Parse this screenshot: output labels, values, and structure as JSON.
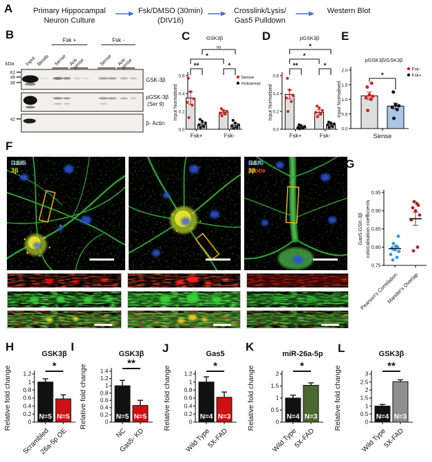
{
  "panels": {
    "A": "A",
    "B": "B",
    "C": "C",
    "D": "D",
    "E": "E",
    "F": "F",
    "G": "G",
    "H": "H",
    "I": "I",
    "J": "J",
    "K": "K",
    "L": "L"
  },
  "panelA": {
    "arrow_color": "#4472c4",
    "steps": [
      {
        "line1": "Primary Hippocampal",
        "line2": "Neuron Culture"
      },
      {
        "line1": "Fsk/DMSO (30min)",
        "line2": "(DIV16)"
      },
      {
        "line1": "Crosslink/Lysis/",
        "line2": "Gas5 Pulldown"
      },
      {
        "line1": "Western Blot",
        "line2": ""
      }
    ]
  },
  "panelB": {
    "kda_label": "kDa",
    "group_labels": [
      "Fsk +",
      "Fsk -"
    ],
    "lane_labels": [
      "Input",
      "Beads",
      "Sense",
      "Anti\nsense",
      "Sense",
      "Anti\nsense"
    ],
    "mw_labels": [
      "62",
      "49",
      "38",
      "42"
    ],
    "blot_labels": [
      "GSK-3β",
      "pGSK-3β",
      "(Ser 9)",
      "β- Actin"
    ]
  },
  "panelF": {
    "img1_labels": [
      {
        "text": "Gas5",
        "color": "#ff3b30"
      },
      {
        "text": "GSK-3β",
        "color": "#d7e838"
      },
      {
        "text": "DAPI",
        "color": "#4da3ff"
      }
    ],
    "img3_labels": [
      {
        "text": "No probe",
        "color": "#ff3b30"
      },
      {
        "text": "GSK-3β",
        "color": "#d7e838"
      },
      {
        "text": "DAPI",
        "color": "#4da3ff"
      }
    ]
  },
  "chart_data": [
    {
      "id": "C",
      "type": "bar",
      "title": "GSK3β",
      "ylabel": "Input Normalised",
      "ylim": [
        0,
        0.6
      ],
      "yticks": [
        {
          "v": 0,
          "label": "0.0"
        },
        {
          "v": 0.2,
          "label": "0.2"
        },
        {
          "v": 0.4,
          "label": "0.4"
        },
        {
          "v": 0.6,
          "label": "0.6"
        }
      ],
      "categories": [
        "Fsk+",
        "Fsk-"
      ],
      "series": [
        {
          "name": "Sense",
          "bar_color": "#dedede",
          "dot_color": "#d62020",
          "values": [
            0.35,
            0.19
          ],
          "errors": [
            0.07,
            0.02
          ],
          "dots": [
            [
              0.13,
              0.27,
              0.3,
              0.34,
              0.42,
              0.57
            ],
            [
              0.15,
              0.17,
              0.18,
              0.2,
              0.21,
              0.23
            ]
          ]
        },
        {
          "name": "Antisense",
          "bar_color": "#a9c6e4",
          "dot_color": "#111111",
          "values": [
            0.05,
            0.04
          ],
          "errors": [
            0.02,
            0.02
          ],
          "dots": [
            [
              0.02,
              0.03,
              0.05,
              0.07,
              0.09,
              0.11
            ],
            [
              0.01,
              0.02,
              0.04,
              0.05,
              0.07,
              0.1
            ]
          ]
        }
      ],
      "legend": [
        {
          "label": "Sense",
          "color": "#d62020"
        },
        {
          "label": "Antisense",
          "color": "#111111"
        }
      ],
      "significance": [
        {
          "label": "**",
          "between": "Fsk+ Sense vs Fsk+ Antisense"
        },
        {
          "label": "*",
          "between": "Fsk+ Sense vs Fsk- Sense"
        },
        {
          "label": "*",
          "between": "Fsk- Sense vs Fsk- Antisense"
        },
        {
          "label": "ns",
          "between": "Fsk+ Antisense vs Fsk- Antisense"
        }
      ]
    },
    {
      "id": "D",
      "type": "bar",
      "title": "pGSK3β",
      "ylabel": "Input Normalised",
      "ylim": [
        0,
        0.6
      ],
      "yticks": [
        {
          "v": 0,
          "label": "0.0"
        },
        {
          "v": 0.2,
          "label": "0.2"
        },
        {
          "v": 0.4,
          "label": "0.4"
        },
        {
          "v": 0.6,
          "label": "0.6"
        }
      ],
      "categories": [
        "Fsk+",
        "Fsk-"
      ],
      "series": [
        {
          "name": "Sense",
          "bar_color": "#dedede",
          "dot_color": "#d62020",
          "values": [
            0.39,
            0.19
          ],
          "errors": [
            0.05,
            0.03
          ],
          "dots": [
            [
              0.2,
              0.31,
              0.35,
              0.38,
              0.44,
              0.57
            ],
            [
              0.14,
              0.17,
              0.19,
              0.21,
              0.24,
              0.26
            ]
          ]
        },
        {
          "name": "Antisense",
          "bar_color": "#a9c6e4",
          "dot_color": "#111111",
          "values": [
            0.02,
            0.05
          ],
          "errors": [
            0.01,
            0.015
          ],
          "dots": [
            [
              0.005,
              0.01,
              0.02,
              0.03,
              0.04,
              0.05
            ],
            [
              0.02,
              0.03,
              0.05,
              0.06,
              0.07,
              0.08
            ]
          ]
        }
      ],
      "significance": [
        {
          "label": "**",
          "between": "Fsk+ Sense vs Fsk+ Antisense"
        },
        {
          "label": "*",
          "between": "Fsk+ Sense vs Fsk- Sense"
        },
        {
          "label": "*",
          "between": "Fsk- Sense vs Fsk- Antisense"
        },
        {
          "label": "*",
          "between": "Fsk+ Sense vs Fsk- Antisense"
        }
      ]
    },
    {
      "id": "E",
      "type": "bar",
      "title": "pGSK3β/GSK3β",
      "ylabel": "Input Normalised",
      "ylim": [
        0,
        2
      ],
      "yticks": [
        {
          "v": 0,
          "label": "0.0"
        },
        {
          "v": 0.5,
          "label": "0.5"
        },
        {
          "v": 1,
          "label": "1.0"
        },
        {
          "v": 1.5,
          "label": "1.5"
        },
        {
          "v": 2,
          "label": "2.0"
        }
      ],
      "categories": [
        "Sense"
      ],
      "series": [
        {
          "name": "Fsk-",
          "bar_color": "#dedede",
          "dot_color": "#d62020",
          "values": [
            1.12
          ],
          "errors": [
            0.13
          ],
          "dots": [
            [
              0.62,
              1.0,
              1.05,
              1.1,
              1.16,
              1.42,
              1.55
            ]
          ]
        },
        {
          "name": "Fsk+",
          "bar_color": "#a9c6e4",
          "dot_color": "#111111",
          "values": [
            0.77
          ],
          "errors": [
            0.1
          ],
          "dots": [
            [
              0.35,
              0.65,
              0.73,
              0.78,
              0.81,
              1.25
            ]
          ]
        }
      ],
      "legend": [
        {
          "label": "Fsk-",
          "color": "#d62020"
        },
        {
          "label": "Fsk+",
          "color": "#111111"
        }
      ],
      "significance": [
        {
          "label": "*",
          "between": "Fsk- vs Fsk+"
        }
      ]
    },
    {
      "id": "G",
      "type": "scatter",
      "ylabel_lines": [
        "Gas5-GSK-3β",
        "colocalisation coefficients"
      ],
      "ylim": [
        0.75,
        0.95
      ],
      "yticks": [
        {
          "v": 0.75,
          "label": "0.75"
        },
        {
          "v": 0.8,
          "label": "0.80"
        },
        {
          "v": 0.85,
          "label": "0.85"
        },
        {
          "v": 0.9,
          "label": "0.90"
        },
        {
          "v": 0.95,
          "label": "0.95"
        }
      ],
      "categories": [
        "Pearson's Correlation",
        "Mander's Overlap"
      ],
      "series": [
        {
          "name": "Pearson's Correlation",
          "dot_color": "#2e96f5",
          "mean": 0.796,
          "sem": 0.006,
          "dots": [
            0.765,
            0.772,
            0.78,
            0.788,
            0.793,
            0.797,
            0.8,
            0.803,
            0.81,
            0.83
          ]
        },
        {
          "name": "Mander's Overlap",
          "dot_color": "#b22020",
          "mean": 0.878,
          "sem": 0.018,
          "dots": [
            0.79,
            0.8,
            0.875,
            0.888,
            0.9,
            0.908,
            0.915,
            0.92,
            0.925
          ]
        }
      ]
    },
    {
      "id": "H",
      "type": "bar",
      "title": "GSK3β",
      "ylabel": "Relative fold change",
      "ylim": [
        0,
        1.2
      ],
      "yticks": [
        {
          "v": 0,
          "label": "0"
        },
        {
          "v": 0.2,
          "label": "0.2"
        },
        {
          "v": 0.4,
          "label": "0.4"
        },
        {
          "v": 0.6,
          "label": "0.6"
        },
        {
          "v": 0.8,
          "label": "0.8"
        },
        {
          "v": 1,
          "label": "1"
        },
        {
          "v": 1.2,
          "label": "1.2"
        }
      ],
      "categories": [
        "Scrambled",
        "26a-5p OE"
      ],
      "values": [
        1.0,
        0.58
      ],
      "errors": [
        0.08,
        0.1
      ],
      "bar_colors": [
        "#111111",
        "#cc1111"
      ],
      "n_labels": [
        "N=5",
        "N=5"
      ],
      "significance": [
        {
          "label": "*",
          "between": "Scrambled vs 26a-5p OE"
        }
      ]
    },
    {
      "id": "I",
      "type": "bar",
      "title": "GSK3β",
      "ylabel": "Relative fold change",
      "ylim": [
        0,
        1.4
      ],
      "yticks": [
        {
          "v": 0,
          "label": "0"
        },
        {
          "v": 0.2,
          "label": "0.2"
        },
        {
          "v": 0.4,
          "label": "0.4"
        },
        {
          "v": 0.6,
          "label": "0.6"
        },
        {
          "v": 0.8,
          "label": "0.8"
        },
        {
          "v": 1,
          "label": "1"
        },
        {
          "v": 1.2,
          "label": "1.2"
        },
        {
          "v": 1.4,
          "label": "1.4"
        }
      ],
      "categories": [
        "NC",
        "Gas5- KD"
      ],
      "values": [
        1.0,
        0.46
      ],
      "errors": [
        0.15,
        0.14
      ],
      "bar_colors": [
        "#111111",
        "#cc1111"
      ],
      "n_labels": [
        "N=5",
        "N=5"
      ],
      "significance": [
        {
          "label": "**",
          "between": "NC vs Gas5- KD"
        }
      ]
    },
    {
      "id": "J",
      "type": "bar",
      "title": "Gas5",
      "ylabel": "Relative fold change",
      "ylim": [
        0,
        1.2
      ],
      "yticks": [
        {
          "v": 0,
          "label": "0"
        },
        {
          "v": 0.2,
          "label": "0.2"
        },
        {
          "v": 0.4,
          "label": "0.4"
        },
        {
          "v": 0.6,
          "label": "0.6"
        },
        {
          "v": 0.8,
          "label": "0.8"
        },
        {
          "v": 1,
          "label": "1"
        },
        {
          "v": 1.2,
          "label": "1.2"
        }
      ],
      "categories": [
        "Wild Type",
        "5X-FAD"
      ],
      "values": [
        1.0,
        0.62
      ],
      "errors": [
        0.13,
        0.13
      ],
      "bar_colors": [
        "#111111",
        "#cc1111"
      ],
      "n_labels": [
        "N=4",
        "N=3"
      ],
      "significance": [
        {
          "label": "*",
          "between": "Wild Type vs 5X-FAD"
        }
      ]
    },
    {
      "id": "K",
      "type": "bar",
      "title": "miR-26a-5p",
      "ylabel": "Relative fold change",
      "ylim": [
        0,
        2
      ],
      "yticks": [
        {
          "v": 0,
          "label": "0"
        },
        {
          "v": 0.5,
          "label": "0.5"
        },
        {
          "v": 1,
          "label": "1"
        },
        {
          "v": 1.5,
          "label": "1.5"
        },
        {
          "v": 2,
          "label": "2"
        }
      ],
      "categories": [
        "Wild Type",
        "5X-FAD"
      ],
      "values": [
        1.0,
        1.53
      ],
      "errors": [
        0.12,
        0.1
      ],
      "bar_colors": [
        "#111111",
        "#4a682f"
      ],
      "n_labels": [
        "N=4",
        "N=3"
      ],
      "significance": [
        {
          "label": "*",
          "between": "Wild Type vs 5X-FAD"
        }
      ]
    },
    {
      "id": "L",
      "type": "bar",
      "title": "GSK3β",
      "ylabel": "Relative fold change",
      "ylim": [
        0,
        3
      ],
      "yticks": [
        {
          "v": 0,
          "label": "0"
        },
        {
          "v": 0.5,
          "label": "0.5"
        },
        {
          "v": 1,
          "label": "1"
        },
        {
          "v": 1.5,
          "label": "1.5"
        },
        {
          "v": 2,
          "label": "2"
        },
        {
          "v": 2.5,
          "label": "2.5"
        },
        {
          "v": 3,
          "label": "3"
        }
      ],
      "categories": [
        "Wild Type",
        "5X-FAD"
      ],
      "values": [
        1.0,
        2.52
      ],
      "errors": [
        0.1,
        0.12
      ],
      "bar_colors": [
        "#111111",
        "#8f8f8f"
      ],
      "n_labels": [
        "N=4",
        "N=3"
      ],
      "significance": [
        {
          "label": "**",
          "between": "Wild Type vs 5X-FAD"
        }
      ]
    }
  ]
}
